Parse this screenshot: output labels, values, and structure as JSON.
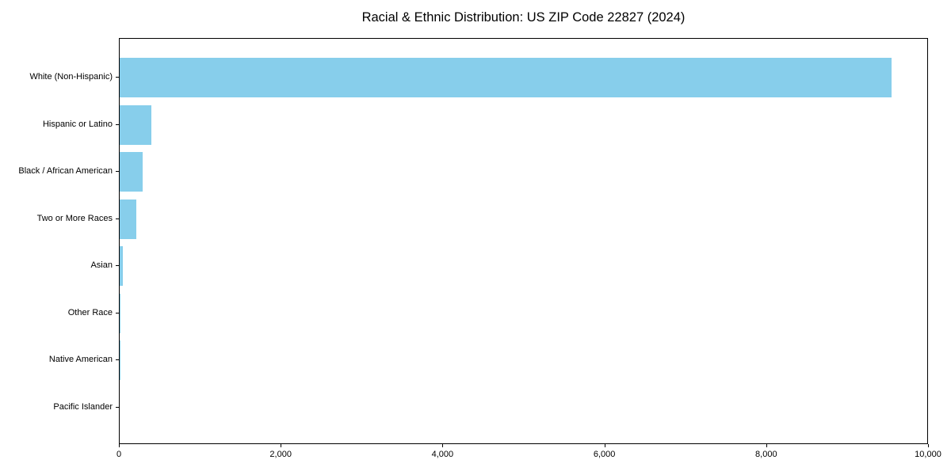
{
  "chart_data": {
    "type": "bar",
    "orientation": "horizontal",
    "title": "Racial & Ethnic Distribution: US ZIP Code 22827 (2024)",
    "categories": [
      "White (Non-Hispanic)",
      "Hispanic or Latino",
      "Black / African American",
      "Two or More Races",
      "Asian",
      "Other Race",
      "Native American",
      "Pacific Islander"
    ],
    "values": [
      9540,
      390,
      287,
      203,
      37,
      8,
      2,
      0
    ],
    "xlabel": "",
    "ylabel": "",
    "xlim": [
      0,
      10000
    ],
    "x_ticks": [
      0,
      2000,
      4000,
      6000,
      8000,
      10000
    ],
    "x_tick_labels": [
      "0",
      "2,000",
      "4,000",
      "6,000",
      "8,000",
      "10,000"
    ],
    "grid": false,
    "legend": null,
    "colors": {
      "bar": "#87CEEB",
      "axis": "#000000",
      "text": "#000000",
      "background": "#ffffff"
    }
  }
}
